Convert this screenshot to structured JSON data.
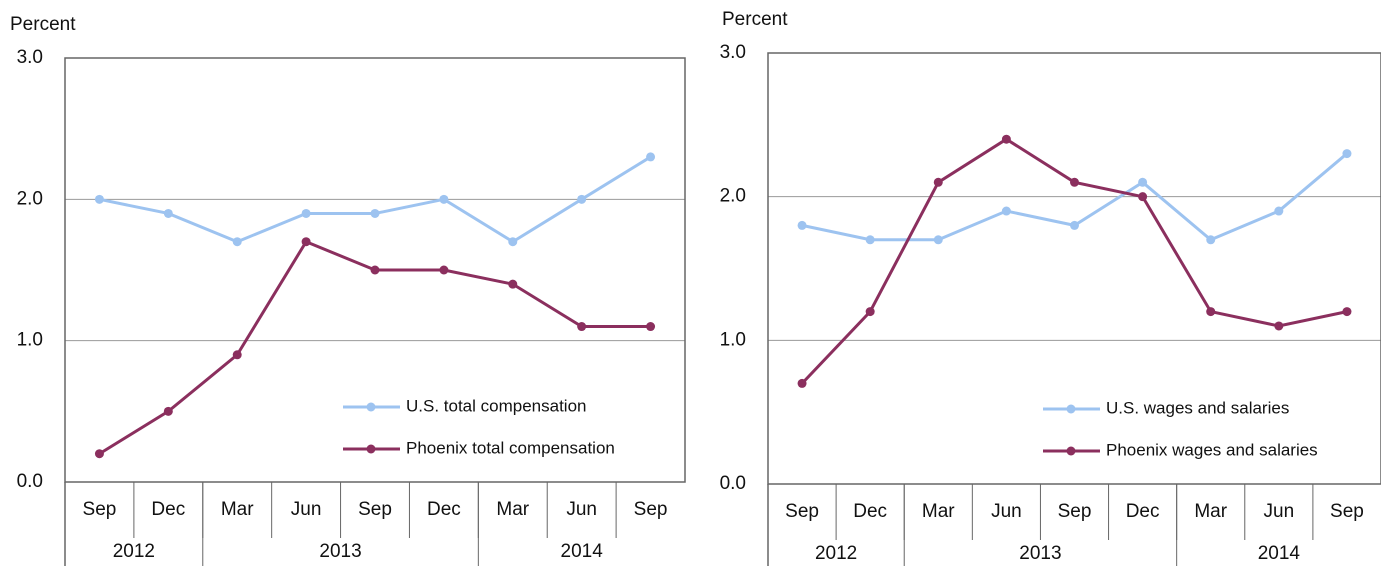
{
  "chart_data": [
    {
      "type": "line",
      "y_label": "Percent",
      "categories": [
        "Sep",
        "Dec",
        "Mar",
        "Jun",
        "Sep",
        "Dec",
        "Mar",
        "Jun",
        "Sep"
      ],
      "year_groups": [
        {
          "label": "2012",
          "span": 2
        },
        {
          "label": "2013",
          "span": 4
        },
        {
          "label": "2014",
          "span": 3
        }
      ],
      "series": [
        {
          "name": "U.S. total compensation",
          "color": "#9dc3f0",
          "values": [
            2.0,
            1.9,
            1.7,
            1.9,
            1.9,
            2.0,
            1.7,
            2.0,
            2.3
          ]
        },
        {
          "name": "Phoenix total compensation",
          "color": "#8b2f5e",
          "values": [
            0.2,
            0.5,
            0.9,
            1.7,
            1.5,
            1.5,
            1.4,
            1.1,
            1.1
          ]
        }
      ],
      "ylim": [
        0,
        3
      ],
      "yticks": [
        {
          "value": 0,
          "label": "0.0"
        },
        {
          "value": 1,
          "label": "1.0"
        },
        {
          "value": 2,
          "label": "2.0"
        },
        {
          "value": 3,
          "label": "3.0"
        }
      ],
      "grid": true,
      "legend": "lower right"
    },
    {
      "type": "line",
      "y_label": "Percent",
      "categories": [
        "Sep",
        "Dec",
        "Mar",
        "Jun",
        "Sep",
        "Dec",
        "Mar",
        "Jun",
        "Sep"
      ],
      "year_groups": [
        {
          "label": "2012",
          "span": 2
        },
        {
          "label": "2013",
          "span": 4
        },
        {
          "label": "2014",
          "span": 3
        }
      ],
      "series": [
        {
          "name": "U.S. wages and salaries",
          "color": "#9dc3f0",
          "values": [
            1.8,
            1.7,
            1.7,
            1.9,
            1.8,
            2.1,
            1.7,
            1.9,
            2.3
          ]
        },
        {
          "name": "Phoenix wages and salaries",
          "color": "#8b2f5e",
          "values": [
            0.7,
            1.2,
            2.1,
            2.4,
            2.1,
            2.0,
            1.2,
            1.1,
            1.2
          ]
        }
      ],
      "ylim": [
        0,
        3
      ],
      "yticks": [
        {
          "value": 0,
          "label": "0.0"
        },
        {
          "value": 1,
          "label": "1.0"
        },
        {
          "value": 2,
          "label": "2.0"
        },
        {
          "value": 3,
          "label": "3.0"
        }
      ],
      "grid": true,
      "legend": "lower right"
    }
  ]
}
